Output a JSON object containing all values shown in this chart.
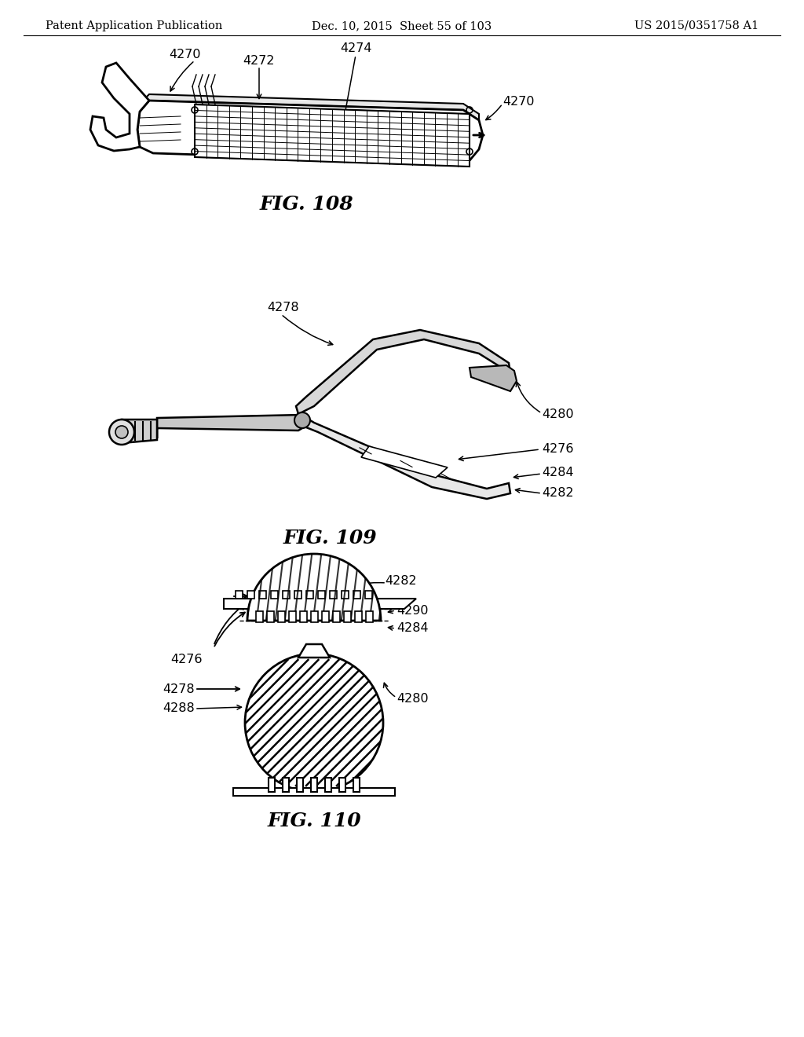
{
  "background_color": "#ffffff",
  "header_left": "Patent Application Publication",
  "header_middle": "Dec. 10, 2015  Sheet 55 of 103",
  "header_right": "US 2015/0351758 A1",
  "header_fontsize": 10.5,
  "fig108_title": "FIG. 108",
  "fig109_title": "FIG. 109",
  "fig110_title": "FIG. 110",
  "fig_title_fontsize": 18,
  "label_fontsize": 11.5
}
